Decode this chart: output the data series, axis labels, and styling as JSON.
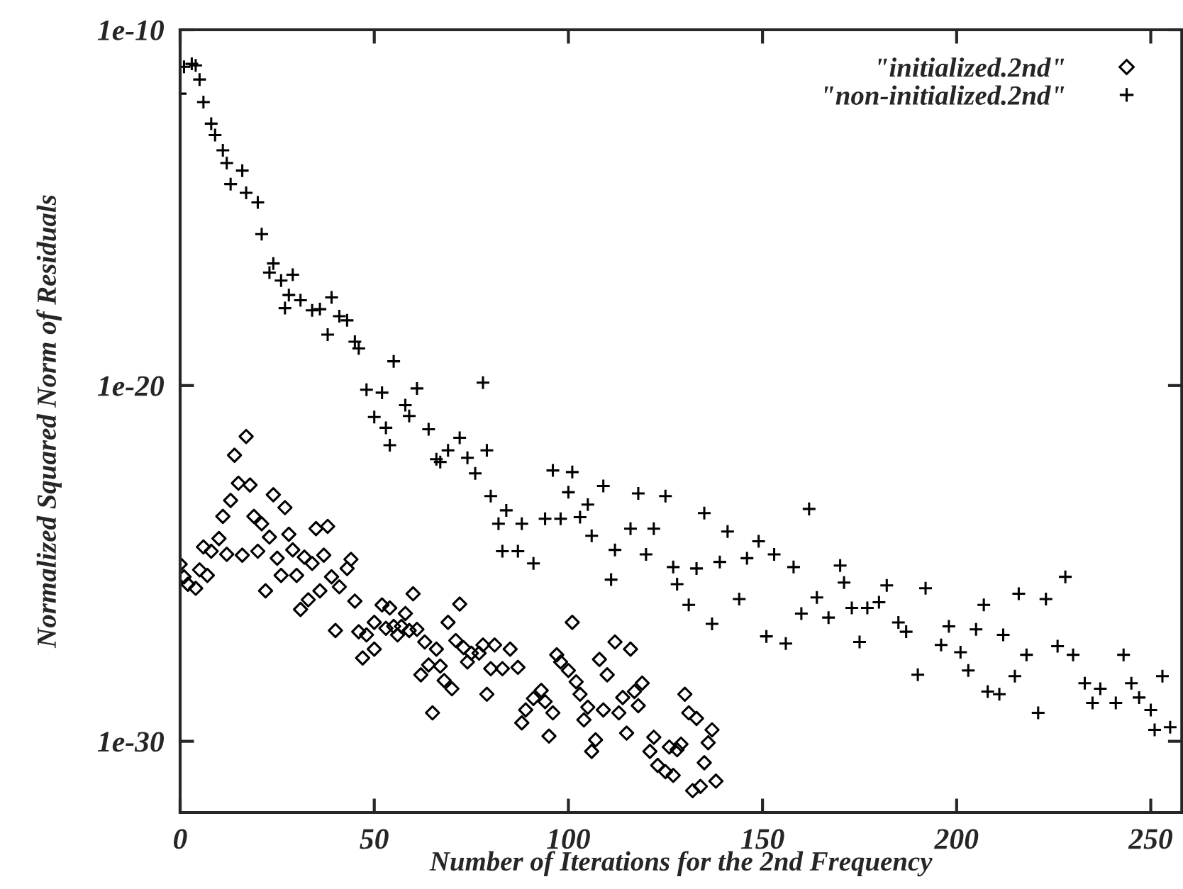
{
  "chart_data": {
    "type": "scatter",
    "xlabel": "Number of Iterations for the 2nd Frequency",
    "ylabel": "Normalized Squared Norm of Residuals",
    "log": "y",
    "xlim": [
      0,
      258
    ],
    "ylim": [
      1e-32,
      1e-10
    ],
    "xticks": [
      0,
      50,
      100,
      150,
      200,
      250
    ],
    "yticks": [
      {
        "value": 1e-30,
        "label": "1e-30"
      },
      {
        "value": 1e-20,
        "label": "1e-20"
      },
      {
        "value": 1e-10,
        "label": "1e-10"
      }
    ],
    "grid": false,
    "legend": "top right",
    "series": [
      {
        "name": "\"initialized.2nd\"",
        "color": "#000000",
        "marker": "diamond",
        "x": [
          0,
          1,
          2,
          4,
          5,
          7,
          6,
          8,
          10,
          12,
          11,
          13,
          15,
          14,
          17,
          16,
          18,
          19,
          21,
          20,
          23,
          22,
          24,
          25,
          27,
          26,
          28,
          29,
          30,
          32,
          31,
          33,
          34,
          35,
          38,
          37,
          36,
          39,
          40,
          41,
          43,
          44,
          45,
          46,
          47,
          50,
          48,
          50,
          52,
          54,
          53,
          55,
          56,
          57,
          58,
          60,
          59,
          61,
          63,
          64,
          62,
          65,
          66,
          67,
          68,
          70,
          69,
          71,
          72,
          73,
          74,
          75,
          77,
          78,
          79,
          81,
          80,
          83,
          85,
          87,
          89,
          88,
          91,
          93,
          94,
          96,
          95,
          101,
          97,
          98,
          100,
          102,
          103,
          105,
          104,
          108,
          110,
          112,
          116,
          109,
          113,
          114,
          115,
          117,
          119,
          118,
          107,
          106,
          122,
          121,
          126,
          128,
          129,
          123,
          125,
          127,
          130,
          131,
          133,
          137,
          136,
          135,
          138,
          134,
          132
        ],
        "values": [
          9.5e-26,
          4.2e-26,
          2.6e-26,
          2e-26,
          6.6e-26,
          4.6e-26,
          2.9e-25,
          2.2e-25,
          5e-25,
          1.8e-25,
          2.1e-24,
          5.9e-24,
          1.8e-23,
          1.1e-22,
          3.7e-22,
          1.7e-25,
          1.6e-23,
          2.1e-24,
          1.3e-24,
          2.2e-25,
          5.5e-25,
          1.7e-26,
          8.5e-24,
          1.4e-25,
          3.7e-24,
          4.6e-26,
          6.6e-25,
          2.4e-25,
          4.6e-26,
          1.5e-25,
          5.1e-27,
          9.5e-27,
          1e-25,
          9.5e-25,
          1.1e-24,
          1.7e-25,
          1.7e-26,
          4.2e-26,
          1.3e-27,
          2.2e-26,
          7.2e-26,
          1.3e-25,
          8.7e-27,
          1.2e-27,
          2.2e-28,
          3.9e-28,
          9.8e-28,
          2.2e-27,
          6.8e-27,
          5.6e-27,
          1.5e-27,
          1.7e-27,
          9.8e-28,
          1.7e-27,
          3.9e-27,
          1.4e-26,
          1.3e-27,
          1.4e-27,
          6.2e-28,
          1.4e-28,
          7.4e-29,
          6.3e-30,
          3.9e-28,
          1.3e-28,
          5.1e-29,
          3e-29,
          2.2e-27,
          6.8e-28,
          7.2e-27,
          4.3e-28,
          1.7e-28,
          3e-28,
          3e-28,
          5.1e-28,
          2.1e-29,
          5.1e-28,
          1.1e-28,
          1.1e-28,
          3.9e-28,
          1.2e-28,
          7.6e-30,
          3.3e-30,
          1.6e-29,
          2.7e-29,
          1.3e-29,
          6.3e-30,
          1.4e-30,
          2.2e-27,
          2.7e-28,
          1.7e-28,
          9.8e-29,
          4.7e-29,
          2.1e-29,
          9.1e-30,
          4e-30,
          2e-28,
          7.4e-29,
          6.2e-28,
          3.9e-28,
          7.6e-30,
          6.3e-30,
          1.7e-29,
          1.7e-30,
          2.5e-29,
          4.3e-29,
          1e-29,
          1.1e-30,
          5.2e-31,
          1.3e-30,
          5.2e-31,
          6.9e-31,
          5.8e-31,
          8.3e-31,
          2.1e-31,
          1.4e-31,
          1.1e-31,
          2.1e-29,
          6.3e-30,
          4.4e-30,
          2.1e-30,
          9.1e-31,
          2.5e-31,
          7.6e-32,
          5.4e-32,
          4.1e-32
        ]
      },
      {
        "name": "\"non-initialized.2nd\"",
        "color": "#000000",
        "marker": "cross",
        "x": [
          0,
          1,
          3,
          4,
          5,
          6,
          8,
          9,
          11,
          12,
          13,
          16,
          17,
          20,
          21,
          23,
          24,
          26,
          29,
          28,
          31,
          27,
          34,
          36,
          38,
          39,
          41,
          43,
          45,
          46,
          48,
          50,
          52,
          55,
          53,
          54,
          58,
          59,
          61,
          64,
          66,
          67,
          69,
          72,
          74,
          76,
          78,
          79,
          80,
          82,
          83,
          84,
          87,
          88,
          91,
          94,
          96,
          98,
          100,
          101,
          103,
          105,
          106,
          109,
          111,
          112,
          116,
          118,
          120,
          122,
          125,
          127,
          128,
          131,
          133,
          135,
          137,
          139,
          141,
          144,
          146,
          149,
          151,
          153,
          156,
          158,
          160,
          162,
          164,
          167,
          170,
          171,
          173,
          175,
          177,
          180,
          182,
          185,
          187,
          190,
          192,
          196,
          198,
          201,
          203,
          205,
          207,
          208,
          211,
          212,
          215,
          216,
          218,
          221,
          223,
          226,
          228,
          230,
          233,
          235,
          237,
          241,
          243,
          245,
          247,
          250,
          251,
          253,
          255
        ],
        "values": [
          1.6e-12,
          9.1e-12,
          1.1e-11,
          1e-11,
          4e-12,
          9.3e-13,
          2.3e-13,
          1.1e-13,
          4.1e-14,
          1.8e-14,
          4.6e-15,
          1.1e-14,
          2.6e-15,
          1.4e-15,
          1.8e-16,
          1.5e-17,
          2.7e-17,
          8.9e-18,
          1.3e-17,
          3.5e-18,
          2.5e-18,
          1.5e-18,
          1.3e-18,
          1.4e-18,
          2.7e-19,
          3e-18,
          8.9e-19,
          6.8e-19,
          1.7e-19,
          1.1e-19,
          7.6e-21,
          1.3e-21,
          6.3e-21,
          4.8e-20,
          6.5e-22,
          2.1e-22,
          2.8e-21,
          1.4e-21,
          8.3e-21,
          5.9e-22,
          8.5e-23,
          7.1e-23,
          1.5e-22,
          3.4e-22,
          9.3e-23,
          3.4e-23,
          1.2e-20,
          1.5e-22,
          7.8e-24,
          1.3e-24,
          2.2e-25,
          3.1e-24,
          2.2e-25,
          1.3e-24,
          1e-25,
          1.8e-24,
          4.1e-23,
          1.8e-24,
          1e-23,
          3.7e-23,
          2e-24,
          4.5e-24,
          6e-25,
          1.5e-23,
          3.5e-26,
          2.4e-25,
          9.5e-25,
          9.3e-24,
          1.8e-25,
          9.5e-25,
          7.8e-24,
          7.9e-26,
          2.6e-26,
          6.8e-27,
          7.2e-26,
          2.6e-24,
          2e-27,
          1.1e-25,
          7.9e-25,
          1e-26,
          1.4e-25,
          4.2e-25,
          8.9e-28,
          1.8e-25,
          5.6e-28,
          7.9e-26,
          3.9e-27,
          3.4e-24,
          1.1e-26,
          3e-27,
          8.7e-26,
          2.9e-26,
          5.6e-27,
          6.2e-28,
          5.6e-27,
          8.1e-27,
          2.4e-26,
          2.2e-27,
          1.2e-27,
          7.4e-29,
          2e-26,
          5.1e-28,
          1.7e-27,
          3.2e-28,
          9.8e-29,
          1.4e-27,
          6.8e-27,
          2.5e-29,
          2.1e-29,
          9.8e-28,
          6.8e-29,
          1.4e-26,
          2.7e-28,
          6.3e-30,
          1e-26,
          4.7e-28,
          4.2e-26,
          2.7e-28,
          4.3e-29,
          1.2e-29,
          3e-29,
          1.2e-29,
          2.7e-28,
          4.3e-29,
          1.7e-29,
          7.6e-30,
          2.1e-30,
          6.8e-29,
          2.5e-30
        ]
      }
    ]
  }
}
